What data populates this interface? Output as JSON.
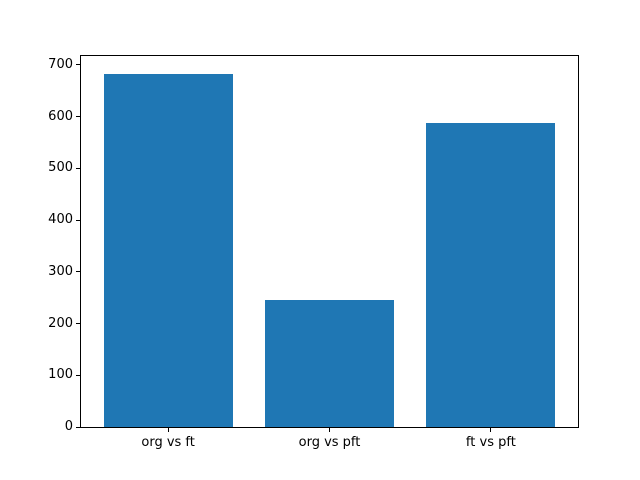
{
  "figure": {
    "background": "#ffffff",
    "spine_color": "#000000",
    "tick_label_color": "#000000"
  },
  "chart_data": {
    "type": "bar",
    "categories": [
      "org vs ft",
      "org vs pft",
      "ft vs pft"
    ],
    "values": [
      683,
      246,
      588
    ],
    "title": "",
    "xlabel": "",
    "ylabel": "",
    "ylim": [
      0,
      717
    ],
    "xlim": [
      -0.54,
      2.54
    ],
    "yticks": [
      0,
      100,
      200,
      300,
      400,
      500,
      600,
      700
    ],
    "bar_width": 0.8,
    "bar_color": "#1f77b4",
    "grid": false,
    "legend": false
  }
}
